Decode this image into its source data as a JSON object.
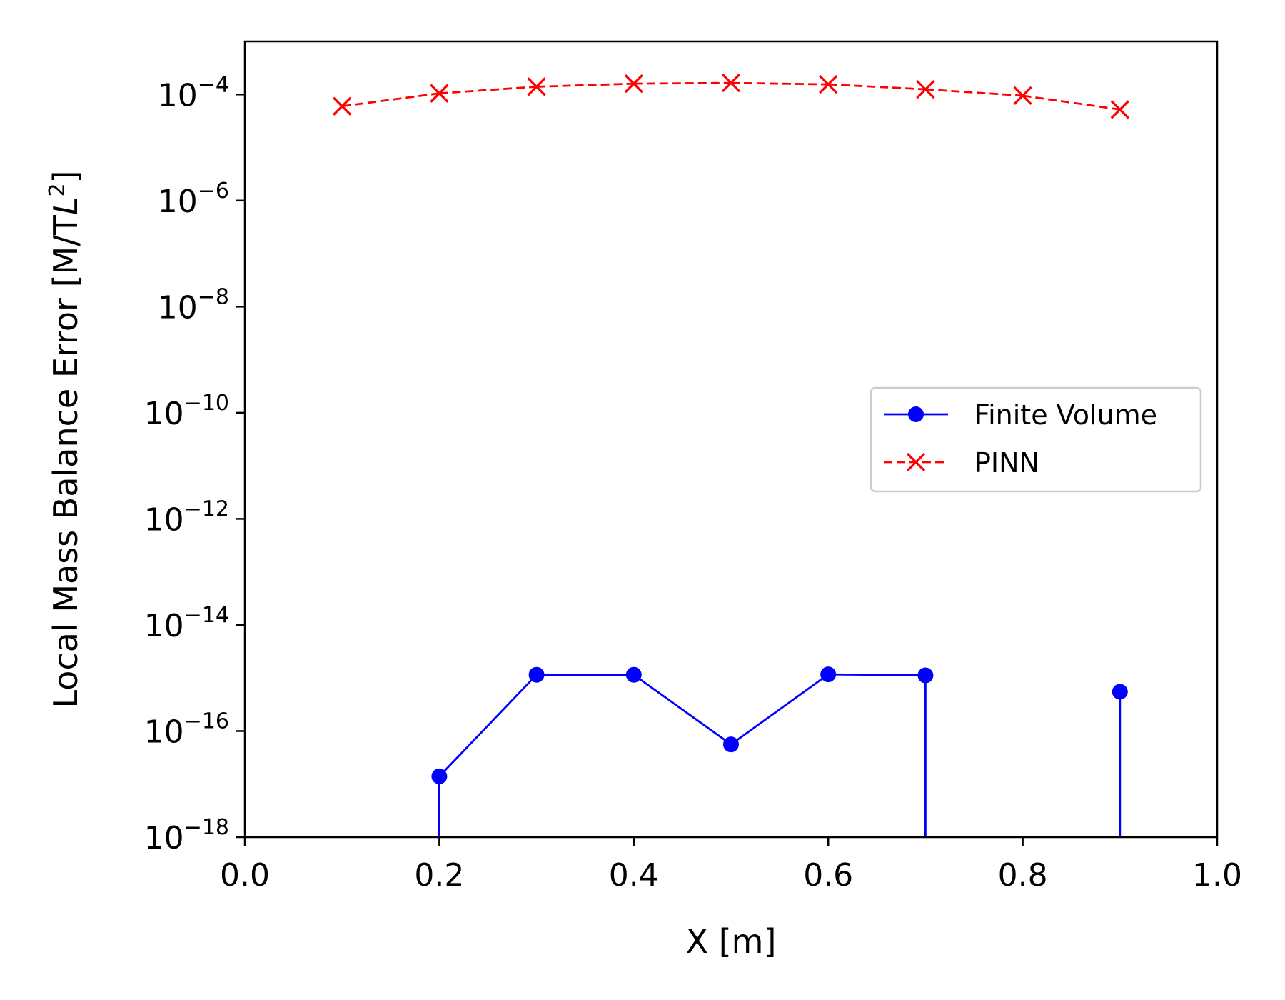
{
  "chart_data": {
    "type": "line",
    "title": "",
    "xlabel": "X [m]",
    "ylabel_prefix": "Local Mass Balance Error [M/T",
    "ylabel_italic": "L",
    "ylabel_sup": "2",
    "ylabel_suffix": "]",
    "xscale": "linear",
    "yscale": "log",
    "xlim": [
      0.0,
      1.0
    ],
    "ylim_exponents": [
      -18,
      -3
    ],
    "x_ticks": [
      0.0,
      0.2,
      0.4,
      0.6,
      0.8,
      1.0
    ],
    "x_tick_labels": [
      "0.0",
      "0.2",
      "0.4",
      "0.6",
      "0.8",
      "1.0"
    ],
    "y_tick_exponents": [
      -4,
      -6,
      -8,
      -10,
      -12,
      -14,
      -16,
      -18
    ],
    "y_tick_base": "10",
    "y_tick_exponent_labels": [
      "−4",
      "−6",
      "−8",
      "−10",
      "−12",
      "−14",
      "−16",
      "−18"
    ],
    "legend_position": "center-right",
    "series": [
      {
        "name": "Finite Volume",
        "color": "#0000ff",
        "linestyle": "solid",
        "marker": "circle",
        "note": "null = value is exactly zero (line drops below log axis)",
        "x": [
          0.1,
          0.2,
          0.3,
          0.4,
          0.5,
          0.6,
          0.7,
          0.8,
          0.9
        ],
        "y": [
          null,
          1.4e-17,
          1.15e-15,
          1.15e-15,
          5.6e-17,
          1.17e-15,
          1.12e-15,
          null,
          5.5e-16
        ]
      },
      {
        "name": "PINN",
        "color": "#ff0000",
        "linestyle": "dashed",
        "marker": "x",
        "x": [
          0.1,
          0.2,
          0.3,
          0.4,
          0.5,
          0.6,
          0.7,
          0.8,
          0.9
        ],
        "y": [
          6e-05,
          0.000105,
          0.00014,
          0.00016,
          0.000165,
          0.000155,
          0.000125,
          9.5e-05,
          5.2e-05
        ]
      }
    ]
  }
}
